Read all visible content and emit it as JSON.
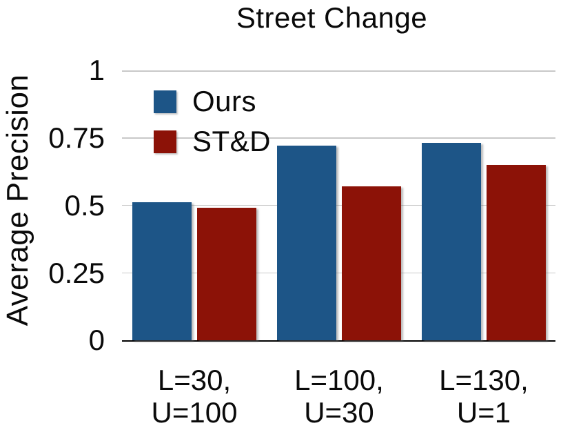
{
  "chart_data": {
    "type": "bar",
    "title": "Street Change",
    "ylabel": "Average Precision",
    "xlabel": "",
    "categories": [
      [
        "L=30,",
        "U=100"
      ],
      [
        "L=100,",
        "U=30"
      ],
      [
        "L=130,",
        "U=1"
      ]
    ],
    "series": [
      {
        "name": "Ours",
        "color": "#1D5587",
        "values": [
          0.51,
          0.72,
          0.73
        ]
      },
      {
        "name": "ST&D",
        "color": "#8C1207",
        "values": [
          0.49,
          0.57,
          0.65
        ]
      }
    ],
    "ylim": [
      0,
      1
    ],
    "yticks": [
      {
        "label": "0",
        "value": 0
      },
      {
        "label": "0.25",
        "value": 0.25
      },
      {
        "label": "0.5",
        "value": 0.5
      },
      {
        "label": "0.75",
        "value": 0.75
      },
      {
        "label": "1",
        "value": 1
      }
    ],
    "grid": true,
    "gridline_color": "#C8C8C8",
    "axis_color": "#000000",
    "legend_position": "top-left"
  }
}
